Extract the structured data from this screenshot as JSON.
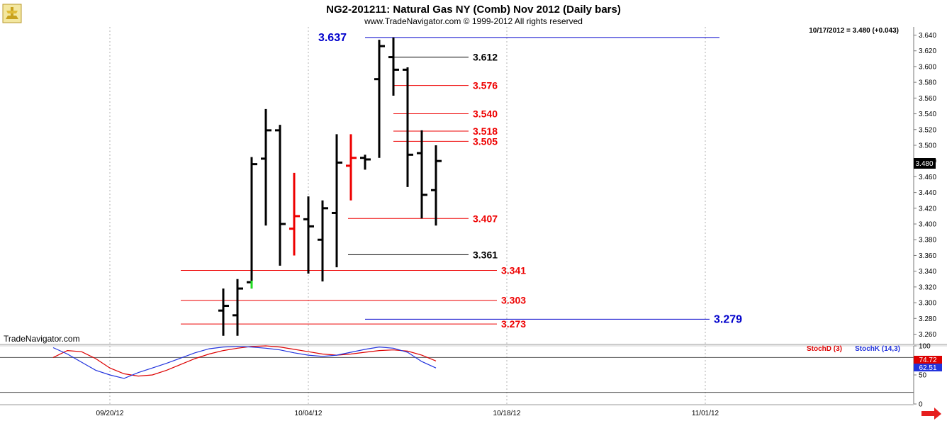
{
  "header": {
    "title": "NG2-201211:  Natural Gas NY (Comb) Nov 2012  (Daily bars)",
    "subtitle": "www.TradeNavigator.com © 1999-2012 All rights reserved",
    "quote": "10/17/2012 = 3.480 (+0.043)",
    "watermark": "TradeNavigator.com",
    "last_price_tag": "3.480"
  },
  "colors": {
    "bar": "#000000",
    "down_bar": "#ee0000",
    "green_bar": "#22dd22",
    "level_red": "#ee0000",
    "level_black": "#000000",
    "level_blue": "#0000cc",
    "stoch_d": "#dd0000",
    "stoch_k": "#2233dd"
  },
  "chart_data": [
    {
      "type": "ohlc",
      "title": "NG2-201211:  Natural Gas NY (Comb) Nov 2012  (Daily bars)",
      "ylim": [
        3.26,
        3.64
      ],
      "y_ticks": [
        "3.260",
        "3.280",
        "3.300",
        "3.320",
        "3.340",
        "3.360",
        "3.380",
        "3.400",
        "3.420",
        "3.440",
        "3.460",
        "3.480",
        "3.500",
        "3.520",
        "3.540",
        "3.560",
        "3.580",
        "3.600",
        "3.620",
        "3.640"
      ],
      "x_ticks": [
        "09/20/12",
        "10/04/12",
        "10/18/12",
        "11/01/12"
      ],
      "x_tick_days": [
        0,
        14,
        28,
        42
      ],
      "grid": "vertical dotted",
      "bars": [
        {
          "day": 8,
          "open": 3.29,
          "high": 3.318,
          "low": 3.258,
          "close": 3.296,
          "color": "black"
        },
        {
          "day": 9,
          "open": 3.284,
          "high": 3.33,
          "low": 3.258,
          "close": 3.318,
          "color": "black"
        },
        {
          "day": 10,
          "open": 3.326,
          "high": 3.485,
          "low": 3.318,
          "close": 3.476,
          "color": "black"
        },
        {
          "day": 11,
          "open": 3.483,
          "high": 3.546,
          "low": 3.398,
          "close": 3.519,
          "color": "black"
        },
        {
          "day": 12,
          "open": 3.519,
          "high": 3.526,
          "low": 3.347,
          "close": 3.4,
          "color": "black"
        },
        {
          "day": 13,
          "open": 3.394,
          "high": 3.465,
          "low": 3.36,
          "close": 3.41,
          "color": "red"
        },
        {
          "day": 14,
          "open": 3.406,
          "high": 3.435,
          "low": 3.337,
          "close": 3.397,
          "color": "black"
        },
        {
          "day": 15,
          "open": 3.38,
          "high": 3.43,
          "low": 3.327,
          "close": 3.42,
          "color": "black"
        },
        {
          "day": 16,
          "open": 3.414,
          "high": 3.514,
          "low": 3.345,
          "close": 3.478,
          "color": "black"
        },
        {
          "day": 17,
          "open": 3.474,
          "high": 3.514,
          "low": 3.43,
          "close": 3.484,
          "color": "red"
        },
        {
          "day": 18,
          "open": 3.484,
          "high": 3.488,
          "low": 3.469,
          "close": 3.482,
          "color": "black"
        },
        {
          "day": 19,
          "open": 3.584,
          "high": 3.634,
          "low": 3.484,
          "close": 3.626,
          "color": "black"
        },
        {
          "day": 20,
          "open": 3.612,
          "high": 3.637,
          "low": 3.563,
          "close": 3.596,
          "color": "black"
        },
        {
          "day": 21,
          "open": 3.596,
          "high": 3.599,
          "low": 3.447,
          "close": 3.488,
          "color": "black"
        },
        {
          "day": 22,
          "open": 3.49,
          "high": 3.519,
          "low": 3.407,
          "close": 3.437,
          "color": "black"
        },
        {
          "day": 23,
          "open": 3.443,
          "high": 3.5,
          "low": 3.398,
          "close": 3.48,
          "color": "black"
        }
      ],
      "levels": [
        {
          "value": 3.637,
          "label": "3.637",
          "color": "blue",
          "from_day": 18.0,
          "to_day": 43.0,
          "label_side": "left",
          "label_day": 16.7
        },
        {
          "value": 3.612,
          "label": "3.612",
          "color": "black",
          "from_day": 20.0,
          "to_day": 25.3,
          "label_side": "right",
          "label_day": 25.6
        },
        {
          "value": 3.576,
          "label": "3.576",
          "color": "red",
          "from_day": 20.0,
          "to_day": 25.3,
          "label_side": "right",
          "label_day": 25.6
        },
        {
          "value": 3.54,
          "label": "3.540",
          "color": "red",
          "from_day": 20.0,
          "to_day": 25.3,
          "label_side": "right",
          "label_day": 25.6
        },
        {
          "value": 3.518,
          "label": "3.518",
          "color": "red",
          "from_day": 20.0,
          "to_day": 25.3,
          "label_side": "right",
          "label_day": 25.6
        },
        {
          "value": 3.505,
          "label": "3.505",
          "color": "red",
          "from_day": 20.0,
          "to_day": 25.3,
          "label_side": "right",
          "label_day": 25.6
        },
        {
          "value": 3.407,
          "label": "3.407",
          "color": "red",
          "from_day": 16.8,
          "to_day": 25.3,
          "label_side": "right",
          "label_day": 25.6
        },
        {
          "value": 3.361,
          "label": "3.361",
          "color": "black",
          "from_day": 16.8,
          "to_day": 25.3,
          "label_side": "right",
          "label_day": 25.6
        },
        {
          "value": 3.341,
          "label": "3.341",
          "color": "red",
          "from_day": 5.0,
          "to_day": 27.3,
          "label_side": "right",
          "label_day": 27.6
        },
        {
          "value": 3.303,
          "label": "3.303",
          "color": "red",
          "from_day": 5.0,
          "to_day": 27.3,
          "label_side": "right",
          "label_day": 27.6
        },
        {
          "value": 3.273,
          "label": "3.273",
          "color": "red",
          "from_day": 5.0,
          "to_day": 27.3,
          "label_side": "right",
          "label_day": 27.6
        },
        {
          "value": 3.279,
          "label": "3.279",
          "color": "blue",
          "from_day": 18.0,
          "to_day": 42.3,
          "label_side": "right",
          "label_day": 42.6
        }
      ]
    },
    {
      "type": "line",
      "title": "",
      "ylim": [
        0,
        100
      ],
      "y_ticks": [
        "0",
        "50",
        "100"
      ],
      "reference_lines": [
        20,
        80
      ],
      "series": [
        {
          "name": "StochD (3)",
          "color": "red",
          "x": [
            -4,
            -3,
            -2,
            -1,
            0,
            1,
            2,
            3,
            4,
            5,
            6,
            7,
            8,
            9,
            10,
            11,
            12,
            13,
            14,
            15,
            16,
            17,
            18,
            19,
            20,
            21,
            22,
            23
          ],
          "values": [
            80,
            92,
            90,
            78,
            62,
            52,
            48,
            50,
            58,
            68,
            78,
            86,
            92,
            96,
            99,
            100,
            98,
            94,
            90,
            86,
            84,
            86,
            89,
            92,
            93,
            91,
            84,
            74
          ]
        },
        {
          "name": "StochK (14,3)",
          "color": "blue",
          "x": [
            -4,
            -3,
            -2,
            -1,
            0,
            1,
            2,
            3,
            4,
            5,
            6,
            7,
            8,
            9,
            10,
            11,
            12,
            13,
            14,
            15,
            16,
            17,
            18,
            19,
            20,
            21,
            22,
            23
          ],
          "values": [
            97,
            86,
            72,
            58,
            50,
            44,
            54,
            62,
            70,
            79,
            88,
            95,
            98,
            99,
            98,
            96,
            93,
            88,
            84,
            82,
            84,
            89,
            94,
            98,
            96,
            89,
            73,
            62
          ]
        }
      ],
      "value_tags": [
        "74.72",
        "62.51"
      ],
      "legend": "top-right"
    }
  ]
}
